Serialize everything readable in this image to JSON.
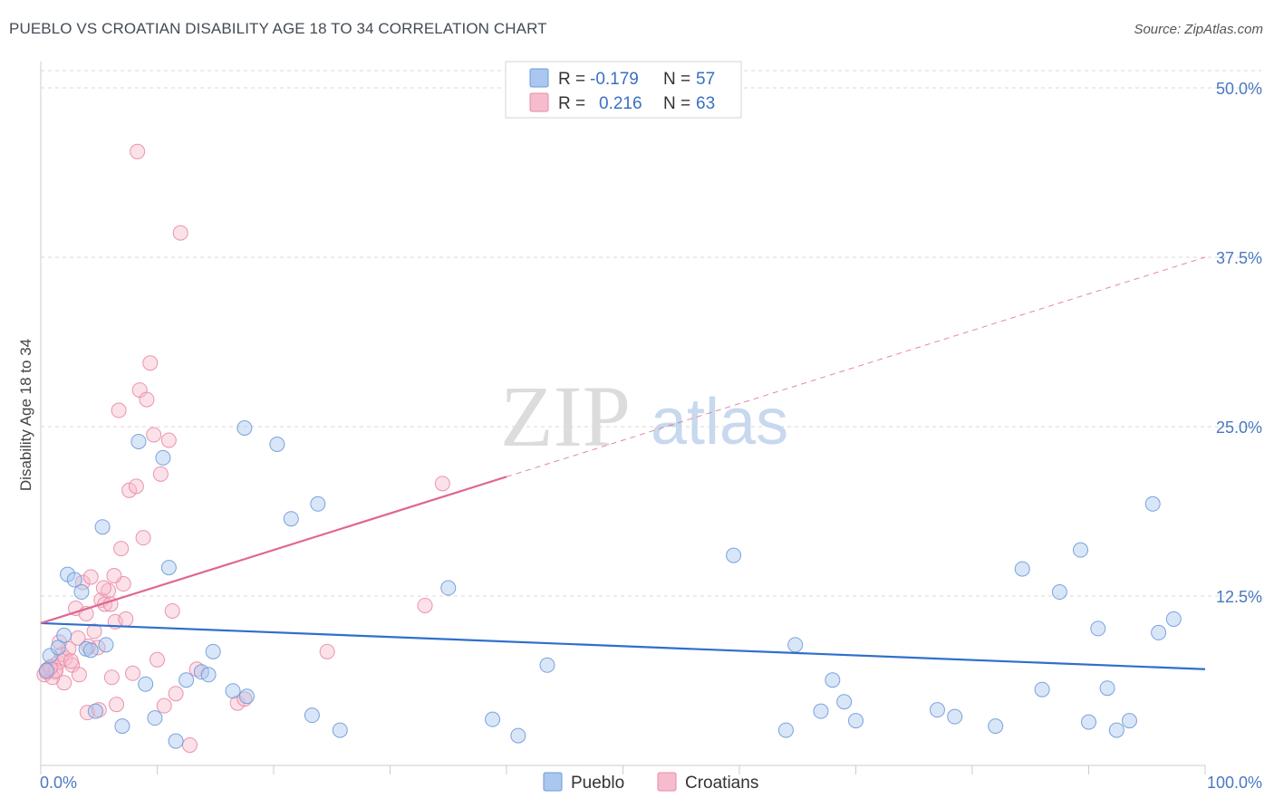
{
  "title": "PUEBLO VS CROATIAN DISABILITY AGE 18 TO 34 CORRELATION CHART",
  "source": "Source: ZipAtlas.com",
  "watermark": {
    "zip": "ZIP",
    "atlas": "atlas"
  },
  "colors": {
    "pueblo_fill": "#a9c7ef",
    "pueblo_stroke": "#6e9ad8",
    "pueblo_line": "#2f6fcc",
    "croatian_fill": "#f6bccd",
    "croatian_stroke": "#e98aa6",
    "croatian_line": "#e06790",
    "grid": "#d8d8d8",
    "tick_label": "#4a78c2"
  },
  "legend": {
    "pueblo": {
      "r_label": "R =",
      "r_value": "-0.179",
      "n_label": "N =",
      "n_value": "57"
    },
    "croatians": {
      "r_label": "R =",
      "r_value": "0.216",
      "n_label": "N =",
      "n_value": "63"
    }
  },
  "chart_data": {
    "type": "scatter",
    "title": "PUEBLO VS CROATIAN DISABILITY AGE 18 TO 34 CORRELATION CHART",
    "xlabel": "",
    "ylabel": "Disability Age 18 to 34",
    "xlim": [
      0,
      100
    ],
    "ylim": [
      0,
      50
    ],
    "x_tick_labels": [
      "0.0%",
      "100.0%"
    ],
    "y_ticks": [
      12.5,
      25.0,
      37.5,
      50.0
    ],
    "y_tick_labels": [
      "12.5%",
      "25.0%",
      "37.5%",
      "50.0%"
    ],
    "legend_position": "top-center",
    "series": [
      {
        "name": "Pueblo",
        "r": -0.179,
        "n": 57,
        "trend": {
          "x0": 0,
          "y0": 10.5,
          "x1": 100,
          "y1": 7.1,
          "dash_from_x": null
        },
        "points": [
          [
            0.8,
            8.1
          ],
          [
            1.5,
            8.7
          ],
          [
            2.0,
            9.6
          ],
          [
            2.3,
            14.1
          ],
          [
            2.9,
            13.7
          ],
          [
            3.5,
            12.8
          ],
          [
            3.9,
            8.6
          ],
          [
            4.3,
            8.5
          ],
          [
            4.7,
            4.0
          ],
          [
            5.3,
            17.6
          ],
          [
            5.6,
            8.9
          ],
          [
            7.0,
            2.9
          ],
          [
            8.4,
            23.9
          ],
          [
            9.0,
            6.0
          ],
          [
            9.8,
            3.5
          ],
          [
            10.5,
            22.7
          ],
          [
            11.0,
            14.6
          ],
          [
            11.6,
            1.8
          ],
          [
            12.5,
            6.3
          ],
          [
            13.8,
            6.9
          ],
          [
            14.4,
            6.7
          ],
          [
            14.8,
            8.4
          ],
          [
            16.5,
            5.5
          ],
          [
            17.5,
            24.9
          ],
          [
            17.7,
            5.1
          ],
          [
            20.3,
            23.7
          ],
          [
            21.5,
            18.2
          ],
          [
            23.3,
            3.7
          ],
          [
            23.8,
            19.3
          ],
          [
            25.7,
            2.6
          ],
          [
            35.0,
            13.1
          ],
          [
            38.8,
            3.4
          ],
          [
            41.0,
            2.2
          ],
          [
            43.5,
            7.4
          ],
          [
            59.5,
            15.5
          ],
          [
            64.0,
            2.6
          ],
          [
            64.8,
            8.9
          ],
          [
            67.0,
            4.0
          ],
          [
            68.0,
            6.3
          ],
          [
            69.0,
            4.7
          ],
          [
            70.0,
            3.3
          ],
          [
            77.0,
            4.1
          ],
          [
            78.5,
            3.6
          ],
          [
            82.0,
            2.9
          ],
          [
            84.3,
            14.5
          ],
          [
            86.0,
            5.6
          ],
          [
            87.5,
            12.8
          ],
          [
            89.3,
            15.9
          ],
          [
            90.0,
            3.2
          ],
          [
            90.8,
            10.1
          ],
          [
            91.6,
            5.7
          ],
          [
            92.4,
            2.6
          ],
          [
            93.5,
            3.3
          ],
          [
            95.5,
            19.3
          ],
          [
            96.0,
            9.8
          ],
          [
            97.3,
            10.8
          ],
          [
            0.5,
            7.0
          ]
        ]
      },
      {
        "name": "Croatians",
        "r": 0.216,
        "n": 63,
        "trend": {
          "x0": 0,
          "y0": 10.5,
          "x1": 100,
          "y1": 37.5,
          "dash_from_x": 40
        },
        "points": [
          [
            0.3,
            6.7
          ],
          [
            0.6,
            7.1
          ],
          [
            0.9,
            7.3
          ],
          [
            1.2,
            6.9
          ],
          [
            1.5,
            7.6
          ],
          [
            1.8,
            8.2
          ],
          [
            2.1,
            7.9
          ],
          [
            2.4,
            8.6
          ],
          [
            2.7,
            7.4
          ],
          [
            3.0,
            11.6
          ],
          [
            3.3,
            6.7
          ],
          [
            3.6,
            13.5
          ],
          [
            3.9,
            11.2
          ],
          [
            4.1,
            8.8
          ],
          [
            4.3,
            13.9
          ],
          [
            4.6,
            9.9
          ],
          [
            4.9,
            8.7
          ],
          [
            5.2,
            12.2
          ],
          [
            5.5,
            11.9
          ],
          [
            5.8,
            12.9
          ],
          [
            6.1,
            6.5
          ],
          [
            6.4,
            10.6
          ],
          [
            6.5,
            4.5
          ],
          [
            6.7,
            26.2
          ],
          [
            6.9,
            16.0
          ],
          [
            7.1,
            13.4
          ],
          [
            7.3,
            10.8
          ],
          [
            7.6,
            20.3
          ],
          [
            7.9,
            6.8
          ],
          [
            8.2,
            20.6
          ],
          [
            8.5,
            27.7
          ],
          [
            8.8,
            16.8
          ],
          [
            9.1,
            27.0
          ],
          [
            9.4,
            29.7
          ],
          [
            9.7,
            24.4
          ],
          [
            10.0,
            7.8
          ],
          [
            10.3,
            21.5
          ],
          [
            10.6,
            4.4
          ],
          [
            11.0,
            24.0
          ],
          [
            11.3,
            11.4
          ],
          [
            11.6,
            5.3
          ],
          [
            12.0,
            39.3
          ],
          [
            12.8,
            1.5
          ],
          [
            13.4,
            7.1
          ],
          [
            16.9,
            4.6
          ],
          [
            17.5,
            4.9
          ],
          [
            24.6,
            8.4
          ],
          [
            33.0,
            11.8
          ],
          [
            34.5,
            20.8
          ],
          [
            8.3,
            45.3
          ],
          [
            2.0,
            6.1
          ],
          [
            1.0,
            6.5
          ],
          [
            0.5,
            6.9
          ],
          [
            1.6,
            9.1
          ],
          [
            2.6,
            7.7
          ],
          [
            3.2,
            9.4
          ],
          [
            4.0,
            3.9
          ],
          [
            5.0,
            4.1
          ],
          [
            5.4,
            13.1
          ],
          [
            6.0,
            11.9
          ],
          [
            6.3,
            14.0
          ],
          [
            1.3,
            7.0
          ],
          [
            0.8,
            7.2
          ]
        ]
      }
    ]
  },
  "bottom_legend": {
    "pueblo": "Pueblo",
    "croatians": "Croatians"
  }
}
